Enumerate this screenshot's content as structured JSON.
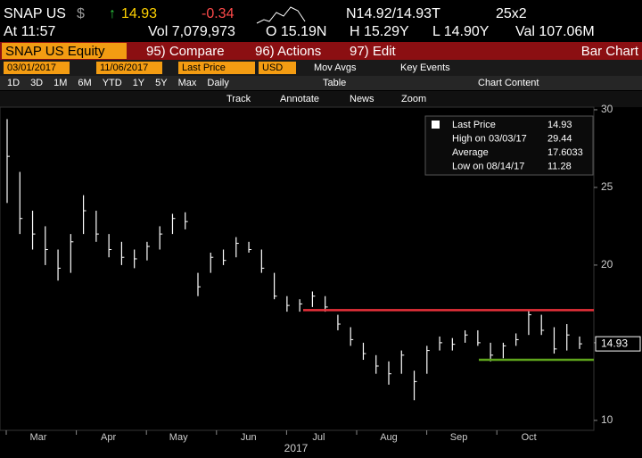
{
  "header": {
    "ticker": "SNAP US",
    "currency": "$",
    "price": "14.93",
    "change": "-0.34",
    "quote": "N14.92/14.93T",
    "size": "25x2",
    "time": "At 11:57",
    "volume": "Vol 7,079,973",
    "open": "O 15.19N",
    "high": "H 15.29Y",
    "low": "L 14.90Y",
    "value": "Val 107.06M"
  },
  "menu": {
    "security": "SNAP US Equity",
    "compare": "95) Compare",
    "actions": "96) Actions",
    "edit": "97) Edit",
    "view": "Bar Chart"
  },
  "controls": {
    "start": "03/01/2017",
    "end": "11/06/2017",
    "field": "Last Price",
    "ccy": "USD",
    "mov_avgs": "Mov Avgs",
    "key_events": "Key Events",
    "periods": [
      "1D",
      "3D",
      "1M",
      "6M",
      "YTD",
      "1Y",
      "5Y",
      "Max"
    ],
    "freq": "Daily",
    "table": "Table",
    "chart_content": "Chart Content",
    "tools": [
      "Track",
      "Annotate",
      "News",
      "Zoom"
    ]
  },
  "chart_data": {
    "type": "ohlc",
    "categories": [
      "Mar",
      "Apr",
      "May",
      "Jun",
      "Jul",
      "Aug",
      "Sep",
      "Oct"
    ],
    "year": "2017",
    "high": [
      29.4,
      26,
      23.5,
      22.5,
      21,
      22,
      24.5,
      23.5,
      22,
      21.5,
      21,
      21.5,
      22.5,
      23.3,
      23.4,
      19.5,
      20.8,
      21,
      21.8,
      21.5,
      21,
      19.5,
      18,
      17.8,
      18.3,
      18,
      16.8,
      16,
      15,
      14.2,
      13.8,
      14.5,
      13.2,
      14.8,
      15.4,
      15.3,
      15.8,
      15.8,
      15,
      15,
      15.6,
      17.1,
      16.8,
      16,
      16.2,
      15.4
    ],
    "low": [
      24,
      22,
      21,
      20,
      19,
      19.5,
      22,
      21.5,
      20.5,
      20,
      19.8,
      20.3,
      21,
      22,
      22.3,
      18,
      19.5,
      20,
      20.5,
      20.8,
      19.5,
      17.8,
      17,
      17,
      17.3,
      17,
      15.8,
      14.8,
      13.9,
      13,
      12.3,
      13,
      11.3,
      13,
      14.5,
      14.5,
      15,
      14.8,
      13.8,
      14,
      14.8,
      15.5,
      15.5,
      14.3,
      14.5,
      14.6
    ],
    "close": [
      27,
      23,
      22,
      21,
      19.8,
      21.5,
      23.5,
      22,
      21,
      20.5,
      20.4,
      21.2,
      22,
      23,
      22.8,
      18.6,
      20.5,
      20.3,
      21.4,
      21,
      19.8,
      18,
      17.4,
      17.5,
      18,
      17.3,
      16.2,
      15.2,
      14.3,
      13.5,
      13,
      14.2,
      12.5,
      14.5,
      15,
      14.9,
      15.5,
      15,
      14.2,
      14.8,
      15.2,
      16.8,
      15.8,
      14.6,
      15.5,
      14.93
    ],
    "color": "#ffffff",
    "lines": [
      {
        "value": 17.1,
        "color": "#e8303a"
      },
      {
        "value": 13.9,
        "color": "#5ea51c"
      }
    ],
    "last_price": 14.93,
    "ylim": [
      9.36,
      30.17
    ],
    "yticks": [
      10,
      15,
      20,
      25,
      30
    ],
    "legend": {
      "rows": [
        [
          "Last Price",
          "14.93"
        ],
        [
          "High on 03/03/17",
          "29.44"
        ],
        [
          "Average",
          "17.6033"
        ],
        [
          "Low on 08/14/17",
          "11.28"
        ]
      ]
    }
  }
}
